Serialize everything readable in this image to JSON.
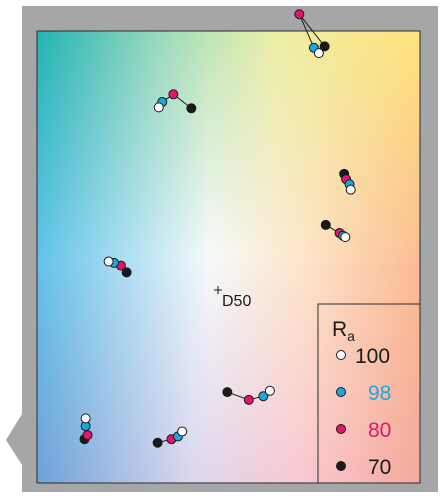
{
  "chart_data": {
    "type": "scatter",
    "title": "",
    "xlabel": "",
    "ylabel": "",
    "xlim": [
      0,
      100
    ],
    "ylim": [
      0,
      100
    ],
    "grid": false,
    "reference_label": "D50",
    "reference_point": {
      "x": 47,
      "y": 45
    },
    "legend": {
      "title_main": "R",
      "title_sub": "a",
      "placement": "bottom-right",
      "items": [
        {
          "label": "100",
          "fill": "#ffffff",
          "text_color": "#1a1a1a"
        },
        {
          "label": "98",
          "fill": "#1fa6dc",
          "text_color": "#1fa6dc"
        },
        {
          "label": "80",
          "fill": "#e2166e",
          "text_color": "#e2166e"
        },
        {
          "label": "70",
          "fill": "#1a1a1a",
          "text_color": "#1a1a1a"
        }
      ]
    },
    "series": [
      {
        "name": "100",
        "color": "#ffffff",
        "points": [
          [
            73.6,
            95.1
          ],
          [
            31.8,
            83.1
          ],
          [
            81.9,
            64.9
          ],
          [
            80.5,
            54.4
          ],
          [
            18.7,
            49.0
          ],
          [
            12.7,
            14.3
          ],
          [
            37.9,
            11.4
          ],
          [
            60.8,
            20.4
          ]
        ]
      },
      {
        "name": "98",
        "color": "#1fa6dc",
        "points": [
          [
            72.3,
            96.3
          ],
          [
            32.7,
            84.3
          ],
          [
            81.6,
            66.1
          ],
          [
            79.9,
            54.7
          ],
          [
            20.1,
            48.7
          ],
          [
            12.7,
            12.6
          ],
          [
            36.8,
            10.3
          ],
          [
            59.1,
            19.2
          ]
        ]
      },
      {
        "name": "80",
        "color": "#e2166e",
        "points": [
          [
            68.5,
            103.7
          ],
          [
            35.6,
            86.0
          ],
          [
            80.7,
            67.2
          ],
          [
            79.0,
            55.3
          ],
          [
            21.9,
            48.1
          ],
          [
            13.2,
            10.6
          ],
          [
            35.1,
            9.7
          ],
          [
            55.3,
            18.4
          ]
        ]
      },
      {
        "name": "70",
        "color": "#1a1a1a",
        "points": [
          [
            75.1,
            96.6
          ],
          [
            40.3,
            82.9
          ],
          [
            80.2,
            68.4
          ],
          [
            75.4,
            57.1
          ],
          [
            23.4,
            46.6
          ],
          [
            12.4,
            9.7
          ],
          [
            31.5,
            8.9
          ],
          [
            49.7,
            20.1
          ]
        ]
      }
    ]
  }
}
